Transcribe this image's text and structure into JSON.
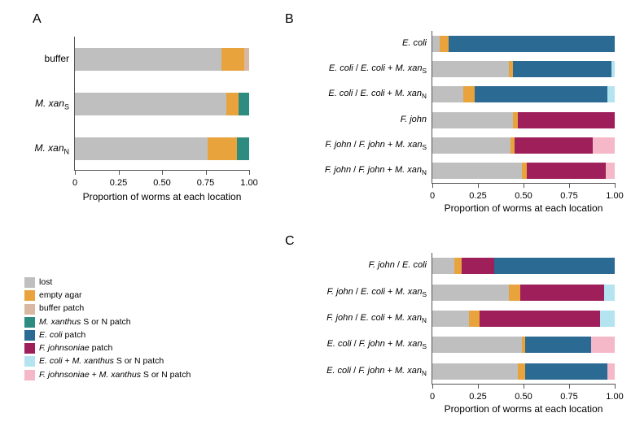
{
  "colors": {
    "lost": "#bfbfbf",
    "empty_agar": "#e8a33d",
    "buffer_patch": "#d9b8a3",
    "mxan_patch": "#2e8b7f",
    "ecoli_patch": "#2a6a93",
    "fjohn_patch": "#9e1f5a",
    "ecoli_mxan_patch": "#b3e4f0",
    "fjohn_mxan_patch": "#f5b8c8",
    "background": "#ffffff",
    "axis": "#555555"
  },
  "legend": {
    "items": [
      {
        "key": "lost",
        "label": "lost"
      },
      {
        "key": "empty_agar",
        "label": "empty agar"
      },
      {
        "key": "buffer_patch",
        "label": "buffer patch"
      },
      {
        "key": "mxan_patch",
        "label_html": "<span class='italic'>M. xanthus</span> S or N patch"
      },
      {
        "key": "ecoli_patch",
        "label_html": "<span class='italic'>E. coli</span>  patch"
      },
      {
        "key": "fjohn_patch",
        "label_html": "<span class='italic'>F. johnsoniae</span> patch"
      },
      {
        "key": "ecoli_mxan_patch",
        "label_html": "<span class='italic'>E. coli</span> + <span class='italic'>M. xanthus</span> S or N patch"
      },
      {
        "key": "fjohn_mxan_patch",
        "label_html": "<span class='italic'>F. johnsoniae</span> + <span class='italic'>M. xanthus</span> S or N patch"
      }
    ]
  },
  "panelA": {
    "title": "A",
    "x_axis_title": "Proportion of worms at each location",
    "xlim": [
      0,
      1.0
    ],
    "xticks": [
      0,
      0.25,
      0.5,
      0.75,
      1.0
    ],
    "xtick_labels": [
      "0",
      "0.25",
      "0.50",
      "0.75",
      "1.00"
    ],
    "rows": [
      {
        "label_html": "buffer",
        "segments": [
          {
            "key": "lost",
            "value": 0.84
          },
          {
            "key": "empty_agar",
            "value": 0.13
          },
          {
            "key": "buffer_patch",
            "value": 0.03
          }
        ]
      },
      {
        "label_html": "<span class='italic'>M. xan</span><sub>S</sub>",
        "segments": [
          {
            "key": "lost",
            "value": 0.87
          },
          {
            "key": "empty_agar",
            "value": 0.07
          },
          {
            "key": "mxan_patch",
            "value": 0.06
          }
        ]
      },
      {
        "label_html": "<span class='italic'>M. xan</span><sub>N</sub>",
        "segments": [
          {
            "key": "lost",
            "value": 0.76
          },
          {
            "key": "empty_agar",
            "value": 0.17
          },
          {
            "key": "mxan_patch",
            "value": 0.07
          }
        ]
      }
    ]
  },
  "panelB": {
    "title": "B",
    "x_axis_title": "Proportion of worms at each location",
    "xlim": [
      0,
      1.0
    ],
    "xticks": [
      0,
      0.25,
      0.5,
      0.75,
      1.0
    ],
    "xtick_labels": [
      "0",
      "0.25",
      "0.50",
      "0.75",
      "1.00"
    ],
    "rows": [
      {
        "label_html": "<span class='italic'>E. coli</span>",
        "segments": [
          {
            "key": "lost",
            "value": 0.04
          },
          {
            "key": "empty_agar",
            "value": 0.05
          },
          {
            "key": "ecoli_patch",
            "value": 0.91
          }
        ]
      },
      {
        "label_html": "<span class='italic'>E. coli</span> / <span class='italic'>E. coli</span> + <span class='italic'>M. xan</span><sub>S</sub>",
        "segments": [
          {
            "key": "lost",
            "value": 0.42
          },
          {
            "key": "empty_agar",
            "value": 0.02
          },
          {
            "key": "ecoli_patch",
            "value": 0.54
          },
          {
            "key": "ecoli_mxan_patch",
            "value": 0.02
          }
        ]
      },
      {
        "label_html": "<span class='italic'>E. coli</span> / <span class='italic'>E. coli</span> + <span class='italic'>M. xan</span><sub>N</sub>",
        "segments": [
          {
            "key": "lost",
            "value": 0.17
          },
          {
            "key": "empty_agar",
            "value": 0.06
          },
          {
            "key": "ecoli_patch",
            "value": 0.73
          },
          {
            "key": "ecoli_mxan_patch",
            "value": 0.04
          }
        ]
      },
      {
        "label_html": "<span class='italic'>F. john</span>",
        "segments": [
          {
            "key": "lost",
            "value": 0.44
          },
          {
            "key": "empty_agar",
            "value": 0.03
          },
          {
            "key": "fjohn_patch",
            "value": 0.53
          }
        ]
      },
      {
        "label_html": "<span class='italic'>F. john</span> / <span class='italic'>F. john</span> + <span class='italic'>M. xan</span><sub>S</sub>",
        "segments": [
          {
            "key": "lost",
            "value": 0.43
          },
          {
            "key": "empty_agar",
            "value": 0.02
          },
          {
            "key": "fjohn_patch",
            "value": 0.43
          },
          {
            "key": "fjohn_mxan_patch",
            "value": 0.12
          }
        ]
      },
      {
        "label_html": "<span class='italic'>F. john</span> / <span class='italic'>F. john</span> + <span class='italic'>M. xan</span><sub>N</sub>",
        "segments": [
          {
            "key": "lost",
            "value": 0.49
          },
          {
            "key": "empty_agar",
            "value": 0.03
          },
          {
            "key": "fjohn_patch",
            "value": 0.43
          },
          {
            "key": "fjohn_mxan_patch",
            "value": 0.05
          }
        ]
      }
    ]
  },
  "panelC": {
    "title": "C",
    "x_axis_title": "Proportion of worms at each location",
    "xlim": [
      0,
      1.0
    ],
    "xticks": [
      0,
      0.25,
      0.5,
      0.75,
      1.0
    ],
    "xtick_labels": [
      "0",
      "0.25",
      "0.50",
      "0.75",
      "1.00"
    ],
    "rows": [
      {
        "label_html": "<span class='italic'>F. john</span> / <span class='italic'>E. coli</span>",
        "segments": [
          {
            "key": "lost",
            "value": 0.12
          },
          {
            "key": "empty_agar",
            "value": 0.04
          },
          {
            "key": "fjohn_patch",
            "value": 0.18
          },
          {
            "key": "ecoli_patch",
            "value": 0.66
          }
        ]
      },
      {
        "label_html": "<span class='italic'>F. john</span> / <span class='italic'>E. coli</span> + <span class='italic'>M. xan</span><sub>S</sub>",
        "segments": [
          {
            "key": "lost",
            "value": 0.42
          },
          {
            "key": "empty_agar",
            "value": 0.06
          },
          {
            "key": "fjohn_patch",
            "value": 0.46
          },
          {
            "key": "ecoli_mxan_patch",
            "value": 0.06
          }
        ]
      },
      {
        "label_html": "<span class='italic'>F. john</span> / <span class='italic'>E. coli</span> + <span class='italic'>M. xan</span><sub>N</sub>",
        "segments": [
          {
            "key": "lost",
            "value": 0.2
          },
          {
            "key": "empty_agar",
            "value": 0.06
          },
          {
            "key": "fjohn_patch",
            "value": 0.66
          },
          {
            "key": "ecoli_mxan_patch",
            "value": 0.08
          }
        ]
      },
      {
        "label_html": "<span class='italic'>E. coli</span> / <span class='italic'>F. john</span> + <span class='italic'>M. xan</span><sub>S</sub>",
        "segments": [
          {
            "key": "lost",
            "value": 0.49
          },
          {
            "key": "empty_agar",
            "value": 0.02
          },
          {
            "key": "ecoli_patch",
            "value": 0.36
          },
          {
            "key": "fjohn_mxan_patch",
            "value": 0.13
          }
        ]
      },
      {
        "label_html": "<span class='italic'>E. coli</span> / <span class='italic'>F. john</span> + <span class='italic'>M. xan</span><sub>N</sub>",
        "segments": [
          {
            "key": "lost",
            "value": 0.47
          },
          {
            "key": "empty_agar",
            "value": 0.04
          },
          {
            "key": "ecoli_patch",
            "value": 0.45
          },
          {
            "key": "fjohn_mxan_patch",
            "value": 0.04
          }
        ]
      }
    ]
  }
}
